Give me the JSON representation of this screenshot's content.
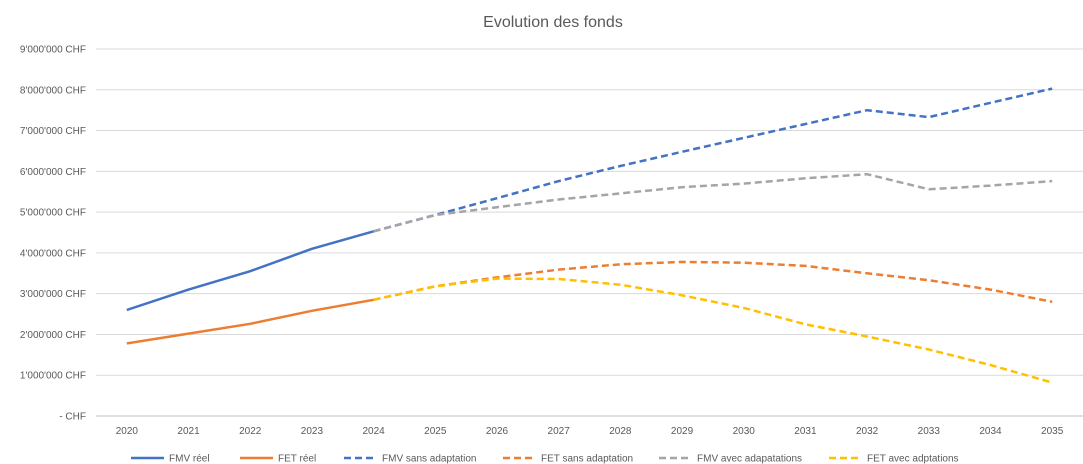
{
  "chart_data": {
    "type": "line",
    "title": "Evolution des fonds",
    "xlabel": "",
    "ylabel": "",
    "categories": [
      "2020",
      "2021",
      "2022",
      "2023",
      "2024",
      "2025",
      "2026",
      "2027",
      "2028",
      "2029",
      "2030",
      "2031",
      "2032",
      "2033",
      "2034",
      "2035"
    ],
    "ylim": [
      0,
      9000000
    ],
    "yticks": [
      {
        "value": 0,
        "label": "-   CHF"
      },
      {
        "value": 1000000,
        "label": "1'000'000 CHF"
      },
      {
        "value": 2000000,
        "label": "2'000'000 CHF"
      },
      {
        "value": 3000000,
        "label": "3'000'000 CHF"
      },
      {
        "value": 4000000,
        "label": "4'000'000 CHF"
      },
      {
        "value": 5000000,
        "label": "5'000'000 CHF"
      },
      {
        "value": 6000000,
        "label": "6'000'000 CHF"
      },
      {
        "value": 7000000,
        "label": "7'000'000 CHF"
      },
      {
        "value": 8000000,
        "label": "8'000'000 CHF"
      },
      {
        "value": 9000000,
        "label": "9'000'000 CHF"
      }
    ],
    "grid": true,
    "legend_position": "bottom",
    "series": [
      {
        "name": "FMV réel",
        "color": "#4472C4",
        "dash": "solid",
        "values": [
          2600000,
          3100000,
          3550000,
          4100000,
          4530000,
          null,
          null,
          null,
          null,
          null,
          null,
          null,
          null,
          null,
          null,
          null
        ]
      },
      {
        "name": "FET réel",
        "color": "#ED7D31",
        "dash": "solid",
        "values": [
          1780000,
          2020000,
          2260000,
          2580000,
          2850000,
          null,
          null,
          null,
          null,
          null,
          null,
          null,
          null,
          null,
          null,
          null
        ]
      },
      {
        "name": "FMV sans adaptation",
        "color": "#4472C4",
        "dash": "dashed",
        "values": [
          null,
          null,
          null,
          null,
          4530000,
          4930000,
          5340000,
          5760000,
          6130000,
          6480000,
          6820000,
          7160000,
          7500000,
          7330000,
          7680000,
          8030000
        ]
      },
      {
        "name": "FET sans adaptation",
        "color": "#ED7D31",
        "dash": "dashed",
        "values": [
          null,
          null,
          null,
          null,
          2850000,
          3180000,
          3400000,
          3590000,
          3720000,
          3780000,
          3760000,
          3680000,
          3500000,
          3330000,
          3100000,
          2800000
        ]
      },
      {
        "name": "FMV avec adapatations",
        "color": "#A5A5A5",
        "dash": "dashed",
        "values": [
          null,
          null,
          null,
          null,
          4530000,
          4930000,
          5120000,
          5310000,
          5460000,
          5610000,
          5700000,
          5830000,
          5930000,
          5560000,
          5650000,
          5760000
        ]
      },
      {
        "name": "FET avec adptations",
        "color": "#FFC000",
        "dash": "dashed",
        "values": [
          null,
          null,
          null,
          null,
          2850000,
          3180000,
          3370000,
          3360000,
          3220000,
          2960000,
          2650000,
          2250000,
          1950000,
          1630000,
          1250000,
          820000
        ]
      }
    ]
  }
}
